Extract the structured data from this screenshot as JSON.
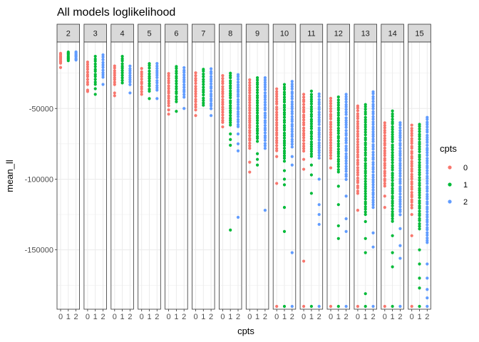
{
  "chart_data": {
    "type": "scatter",
    "title": "All models loglikelihood",
    "xlabel": "cpts",
    "ylabel": "mean_ll",
    "x_categories": [
      "0",
      "1",
      "2"
    ],
    "ylim": [
      -192000,
      -3000
    ],
    "y_ticks": [
      -50000,
      -100000,
      -150000
    ],
    "y_tick_labels": [
      "-50000",
      "-100000",
      "-150000"
    ],
    "grid": true,
    "legend": {
      "title": "cpts",
      "position": "right",
      "entries": [
        {
          "label": "0",
          "color": "#F8766D"
        },
        {
          "label": "1",
          "color": "#00BA38"
        },
        {
          "label": "2",
          "color": "#619CFF"
        }
      ]
    },
    "facets": [
      {
        "label": "2",
        "series": [
          {
            "cpt": "0",
            "min": -18000,
            "max": -11000,
            "outliers": [
              -21000
            ]
          },
          {
            "cpt": "1",
            "min": -16000,
            "max": -10000,
            "outliers": []
          },
          {
            "cpt": "2",
            "min": -16000,
            "max": -10000,
            "outliers": []
          }
        ]
      },
      {
        "label": "3",
        "series": [
          {
            "cpt": "0",
            "min": -33000,
            "max": -17000,
            "outliers": [
              -37000,
              -38000
            ]
          },
          {
            "cpt": "1",
            "min": -33000,
            "max": -13000,
            "outliers": [
              -36000,
              -40000
            ]
          },
          {
            "cpt": "2",
            "min": -28000,
            "max": -12000,
            "outliers": [
              -33000
            ]
          }
        ]
      },
      {
        "label": "4",
        "series": [
          {
            "cpt": "0",
            "min": -33000,
            "max": -20000,
            "outliers": [
              -39000,
              -41000
            ]
          },
          {
            "cpt": "1",
            "min": -32000,
            "max": -13000,
            "outliers": []
          },
          {
            "cpt": "2",
            "min": -33000,
            "max": -20000,
            "outliers": [
              -39000
            ]
          }
        ]
      },
      {
        "label": "5",
        "series": [
          {
            "cpt": "0",
            "min": -40000,
            "max": -22000,
            "outliers": []
          },
          {
            "cpt": "1",
            "min": -38000,
            "max": -18000,
            "outliers": [
              -43000
            ]
          },
          {
            "cpt": "2",
            "min": -37000,
            "max": -18000,
            "outliers": [
              -43000
            ]
          }
        ]
      },
      {
        "label": "6",
        "series": [
          {
            "cpt": "0",
            "min": -48000,
            "max": -25000,
            "outliers": [
              -51000,
              -54000
            ]
          },
          {
            "cpt": "1",
            "min": -45000,
            "max": -20000,
            "outliers": [
              -52000
            ]
          },
          {
            "cpt": "2",
            "min": -42000,
            "max": -21000,
            "outliers": [
              -50000
            ]
          }
        ]
      },
      {
        "label": "7",
        "series": [
          {
            "cpt": "0",
            "min": -51000,
            "max": -25000,
            "outliers": [
              -55000
            ]
          },
          {
            "cpt": "1",
            "min": -48000,
            "max": -22000,
            "outliers": []
          },
          {
            "cpt": "2",
            "min": -50000,
            "max": -22000,
            "outliers": [
              -55000
            ]
          }
        ]
      },
      {
        "label": "8",
        "series": [
          {
            "cpt": "0",
            "min": -60000,
            "max": -27000,
            "outliers": [
              -63000
            ]
          },
          {
            "cpt": "1",
            "min": -62000,
            "max": -25000,
            "outliers": [
              -68000,
              -72000,
              -76000,
              -136000
            ]
          },
          {
            "cpt": "2",
            "min": -63000,
            "max": -26000,
            "outliers": [
              -68000,
              -75000,
              -80000,
              -127000
            ]
          }
        ]
      },
      {
        "label": "9",
        "series": [
          {
            "cpt": "0",
            "min": -78000,
            "max": -30000,
            "outliers": [
              -88000,
              -95000
            ]
          },
          {
            "cpt": "1",
            "min": -73000,
            "max": -28000,
            "outliers": [
              -82000,
              -86000,
              -90000
            ]
          },
          {
            "cpt": "2",
            "min": -78000,
            "max": -28000,
            "outliers": [
              -122000
            ]
          }
        ]
      },
      {
        "label": "10",
        "series": [
          {
            "cpt": "0",
            "min": -80000,
            "max": -36000,
            "outliers": [
              -84000,
              -103000,
              -190000
            ]
          },
          {
            "cpt": "1",
            "min": -87000,
            "max": -33000,
            "outliers": [
              -94000,
              -100000,
              -104000,
              -120000,
              -137000,
              -190000
            ]
          },
          {
            "cpt": "2",
            "min": -77000,
            "max": -31000,
            "outliers": [
              -84000,
              -90000,
              -152000,
              -190000
            ]
          }
        ]
      },
      {
        "label": "11",
        "series": [
          {
            "cpt": "0",
            "min": -80000,
            "max": -40000,
            "outliers": [
              -86000,
              -93000,
              -158000,
              -190000
            ]
          },
          {
            "cpt": "1",
            "min": -84000,
            "max": -38000,
            "outliers": [
              -90000,
              -97000,
              -110000,
              -190000
            ]
          },
          {
            "cpt": "2",
            "min": -85000,
            "max": -40000,
            "outliers": [
              -100000,
              -118000,
              -125000,
              -132000,
              -190000
            ]
          }
        ]
      },
      {
        "label": "12",
        "series": [
          {
            "cpt": "0",
            "min": -85000,
            "max": -43000,
            "outliers": [
              -92000,
              -190000
            ]
          },
          {
            "cpt": "1",
            "min": -95000,
            "max": -42000,
            "outliers": [
              -105000,
              -118000,
              -133000,
              -142000,
              -190000
            ]
          },
          {
            "cpt": "2",
            "min": -100000,
            "max": -40000,
            "outliers": [
              -112000,
              -128000,
              -137000,
              -190000
            ]
          }
        ]
      },
      {
        "label": "13",
        "series": [
          {
            "cpt": "0",
            "min": -110000,
            "max": -48000,
            "outliers": [
              -122000,
              -190000
            ]
          },
          {
            "cpt": "1",
            "min": -125000,
            "max": -47000,
            "outliers": [
              -130000,
              -142000,
              -152000,
              -181000,
              -190000
            ]
          },
          {
            "cpt": "2",
            "min": -120000,
            "max": -38000,
            "outliers": [
              -138000,
              -148000,
              -190000
            ]
          }
        ]
      },
      {
        "label": "14",
        "series": [
          {
            "cpt": "0",
            "min": -105000,
            "max": -60000,
            "outliers": [
              -112000,
              -120000,
              -190000
            ]
          },
          {
            "cpt": "1",
            "min": -130000,
            "max": -52000,
            "outliers": [
              -140000,
              -152000,
              -162000,
              -190000
            ]
          },
          {
            "cpt": "2",
            "min": -125000,
            "max": -60000,
            "outliers": [
              -135000,
              -147000,
              -156000,
              -190000
            ]
          }
        ]
      },
      {
        "label": "15",
        "series": [
          {
            "cpt": "0",
            "min": -120000,
            "max": -62000,
            "outliers": [
              -125000,
              -140000,
              -190000
            ]
          },
          {
            "cpt": "1",
            "min": -135000,
            "max": -61000,
            "outliers": [
              -150000,
              -160000,
              -170000,
              -177000,
              -190000
            ]
          },
          {
            "cpt": "2",
            "min": -145000,
            "max": -56000,
            "outliers": [
              -160000,
              -170000,
              -178000,
              -184000,
              -190000
            ]
          }
        ]
      }
    ]
  }
}
